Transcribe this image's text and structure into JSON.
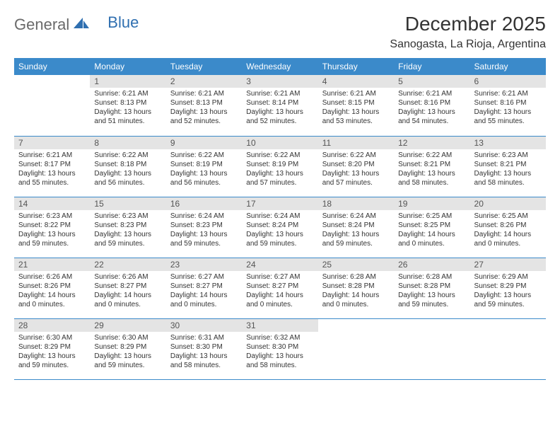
{
  "brand": {
    "part1": "General",
    "part2": "Blue"
  },
  "title": "December 2025",
  "location": "Sanogasta, La Rioja, Argentina",
  "colors": {
    "header_bg": "#3b8aca",
    "header_text": "#ffffff",
    "daynum_bg": "#e4e4e4",
    "row_border": "#3b8aca",
    "logo_gray": "#6a6a6a",
    "logo_blue": "#2f6fb0"
  },
  "font": {
    "day_text_size": 10,
    "header_size": 12,
    "title_size": 28,
    "location_size": 16
  },
  "weekdays": [
    "Sunday",
    "Monday",
    "Tuesday",
    "Wednesday",
    "Thursday",
    "Friday",
    "Saturday"
  ],
  "weeks": [
    [
      {
        "n": "",
        "sr": "",
        "ss": "",
        "dl": ""
      },
      {
        "n": "1",
        "sr": "Sunrise: 6:21 AM",
        "ss": "Sunset: 8:13 PM",
        "dl": "Daylight: 13 hours and 51 minutes."
      },
      {
        "n": "2",
        "sr": "Sunrise: 6:21 AM",
        "ss": "Sunset: 8:13 PM",
        "dl": "Daylight: 13 hours and 52 minutes."
      },
      {
        "n": "3",
        "sr": "Sunrise: 6:21 AM",
        "ss": "Sunset: 8:14 PM",
        "dl": "Daylight: 13 hours and 52 minutes."
      },
      {
        "n": "4",
        "sr": "Sunrise: 6:21 AM",
        "ss": "Sunset: 8:15 PM",
        "dl": "Daylight: 13 hours and 53 minutes."
      },
      {
        "n": "5",
        "sr": "Sunrise: 6:21 AM",
        "ss": "Sunset: 8:16 PM",
        "dl": "Daylight: 13 hours and 54 minutes."
      },
      {
        "n": "6",
        "sr": "Sunrise: 6:21 AM",
        "ss": "Sunset: 8:16 PM",
        "dl": "Daylight: 13 hours and 55 minutes."
      }
    ],
    [
      {
        "n": "7",
        "sr": "Sunrise: 6:21 AM",
        "ss": "Sunset: 8:17 PM",
        "dl": "Daylight: 13 hours and 55 minutes."
      },
      {
        "n": "8",
        "sr": "Sunrise: 6:22 AM",
        "ss": "Sunset: 8:18 PM",
        "dl": "Daylight: 13 hours and 56 minutes."
      },
      {
        "n": "9",
        "sr": "Sunrise: 6:22 AM",
        "ss": "Sunset: 8:19 PM",
        "dl": "Daylight: 13 hours and 56 minutes."
      },
      {
        "n": "10",
        "sr": "Sunrise: 6:22 AM",
        "ss": "Sunset: 8:19 PM",
        "dl": "Daylight: 13 hours and 57 minutes."
      },
      {
        "n": "11",
        "sr": "Sunrise: 6:22 AM",
        "ss": "Sunset: 8:20 PM",
        "dl": "Daylight: 13 hours and 57 minutes."
      },
      {
        "n": "12",
        "sr": "Sunrise: 6:22 AM",
        "ss": "Sunset: 8:21 PM",
        "dl": "Daylight: 13 hours and 58 minutes."
      },
      {
        "n": "13",
        "sr": "Sunrise: 6:23 AM",
        "ss": "Sunset: 8:21 PM",
        "dl": "Daylight: 13 hours and 58 minutes."
      }
    ],
    [
      {
        "n": "14",
        "sr": "Sunrise: 6:23 AM",
        "ss": "Sunset: 8:22 PM",
        "dl": "Daylight: 13 hours and 59 minutes."
      },
      {
        "n": "15",
        "sr": "Sunrise: 6:23 AM",
        "ss": "Sunset: 8:23 PM",
        "dl": "Daylight: 13 hours and 59 minutes."
      },
      {
        "n": "16",
        "sr": "Sunrise: 6:24 AM",
        "ss": "Sunset: 8:23 PM",
        "dl": "Daylight: 13 hours and 59 minutes."
      },
      {
        "n": "17",
        "sr": "Sunrise: 6:24 AM",
        "ss": "Sunset: 8:24 PM",
        "dl": "Daylight: 13 hours and 59 minutes."
      },
      {
        "n": "18",
        "sr": "Sunrise: 6:24 AM",
        "ss": "Sunset: 8:24 PM",
        "dl": "Daylight: 13 hours and 59 minutes."
      },
      {
        "n": "19",
        "sr": "Sunrise: 6:25 AM",
        "ss": "Sunset: 8:25 PM",
        "dl": "Daylight: 14 hours and 0 minutes."
      },
      {
        "n": "20",
        "sr": "Sunrise: 6:25 AM",
        "ss": "Sunset: 8:26 PM",
        "dl": "Daylight: 14 hours and 0 minutes."
      }
    ],
    [
      {
        "n": "21",
        "sr": "Sunrise: 6:26 AM",
        "ss": "Sunset: 8:26 PM",
        "dl": "Daylight: 14 hours and 0 minutes."
      },
      {
        "n": "22",
        "sr": "Sunrise: 6:26 AM",
        "ss": "Sunset: 8:27 PM",
        "dl": "Daylight: 14 hours and 0 minutes."
      },
      {
        "n": "23",
        "sr": "Sunrise: 6:27 AM",
        "ss": "Sunset: 8:27 PM",
        "dl": "Daylight: 14 hours and 0 minutes."
      },
      {
        "n": "24",
        "sr": "Sunrise: 6:27 AM",
        "ss": "Sunset: 8:27 PM",
        "dl": "Daylight: 14 hours and 0 minutes."
      },
      {
        "n": "25",
        "sr": "Sunrise: 6:28 AM",
        "ss": "Sunset: 8:28 PM",
        "dl": "Daylight: 14 hours and 0 minutes."
      },
      {
        "n": "26",
        "sr": "Sunrise: 6:28 AM",
        "ss": "Sunset: 8:28 PM",
        "dl": "Daylight: 13 hours and 59 minutes."
      },
      {
        "n": "27",
        "sr": "Sunrise: 6:29 AM",
        "ss": "Sunset: 8:29 PM",
        "dl": "Daylight: 13 hours and 59 minutes."
      }
    ],
    [
      {
        "n": "28",
        "sr": "Sunrise: 6:30 AM",
        "ss": "Sunset: 8:29 PM",
        "dl": "Daylight: 13 hours and 59 minutes."
      },
      {
        "n": "29",
        "sr": "Sunrise: 6:30 AM",
        "ss": "Sunset: 8:29 PM",
        "dl": "Daylight: 13 hours and 59 minutes."
      },
      {
        "n": "30",
        "sr": "Sunrise: 6:31 AM",
        "ss": "Sunset: 8:30 PM",
        "dl": "Daylight: 13 hours and 58 minutes."
      },
      {
        "n": "31",
        "sr": "Sunrise: 6:32 AM",
        "ss": "Sunset: 8:30 PM",
        "dl": "Daylight: 13 hours and 58 minutes."
      },
      {
        "n": "",
        "sr": "",
        "ss": "",
        "dl": ""
      },
      {
        "n": "",
        "sr": "",
        "ss": "",
        "dl": ""
      },
      {
        "n": "",
        "sr": "",
        "ss": "",
        "dl": ""
      }
    ]
  ]
}
